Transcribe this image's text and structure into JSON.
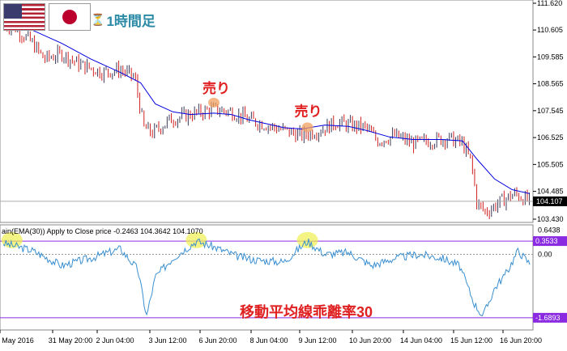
{
  "header": {
    "flags": [
      "us-flag",
      "jp-flag"
    ],
    "timeframe_label": "1時間足"
  },
  "price_axis": {
    "labels": [
      "111.620",
      "110.605",
      "109.585",
      "108.565",
      "107.545",
      "106.525",
      "105.505",
      "104.485",
      "103.430"
    ],
    "current_price": "104.107"
  },
  "indicator": {
    "title": "ain(EMA(30)) Apply to Close price -0.2463 104.3642 104.1070",
    "axis_labels": [
      "0.6438",
      "0.3533",
      "0.00",
      "-1.6893"
    ],
    "watermark": "移動平均線乖離率30"
  },
  "annotations": {
    "sell_1": "売り",
    "sell_2": "売り"
  },
  "time_axis": {
    "labels": [
      "May 2016",
      "31 May 20:00",
      "2 Jun 04:00",
      "3 Jun 12:00",
      "6 Jun 20:00",
      "8 Jun 04:00",
      "9 Jun 12:00",
      "10 Jun 20:00",
      "14 Jun 04:00",
      "15 Jun 12:00",
      "16 Jun 20:00"
    ]
  },
  "colors": {
    "bull": "#3a3a5a",
    "bear": "#d22020",
    "ema": "#0000e0",
    "indicator_line": "#3a8fd0",
    "level_line": "#8a2be2",
    "highlight": "#f0f050",
    "sell_text": "#e02020",
    "watermark": "#e02020"
  },
  "chart_data": {
    "type": "line",
    "title": "",
    "price_range": [
      103.43,
      111.62
    ],
    "price_path": [
      [
        0,
        110.8
      ],
      [
        4,
        110.7
      ],
      [
        10,
        110.1
      ],
      [
        14,
        109.5
      ],
      [
        20,
        109.7
      ],
      [
        26,
        109.3
      ],
      [
        34,
        109.0
      ],
      [
        40,
        109.1
      ],
      [
        45,
        108.8
      ],
      [
        48,
        106.9
      ],
      [
        51,
        106.7
      ],
      [
        57,
        107.2
      ],
      [
        64,
        107.4
      ],
      [
        72,
        107.6
      ],
      [
        78,
        107.5
      ],
      [
        84,
        107.2
      ],
      [
        90,
        107.0
      ],
      [
        96,
        106.8
      ],
      [
        102,
        106.6
      ],
      [
        108,
        106.8
      ],
      [
        114,
        107.1
      ],
      [
        118,
        107.0
      ],
      [
        124,
        106.9
      ],
      [
        128,
        106.4
      ],
      [
        134,
        106.6
      ],
      [
        140,
        106.3
      ],
      [
        146,
        106.4
      ],
      [
        152,
        106.5
      ],
      [
        157,
        106.3
      ],
      [
        160,
        105.6
      ],
      [
        162,
        104.0
      ],
      [
        165,
        103.7
      ],
      [
        170,
        104.1
      ],
      [
        175,
        104.4
      ],
      [
        180,
        104.1
      ]
    ],
    "ema_path": [
      [
        0,
        110.9
      ],
      [
        10,
        110.6
      ],
      [
        20,
        110.1
      ],
      [
        30,
        109.5
      ],
      [
        40,
        109.0
      ],
      [
        47,
        108.6
      ],
      [
        52,
        107.8
      ],
      [
        58,
        107.5
      ],
      [
        64,
        107.4
      ],
      [
        72,
        107.45
      ],
      [
        78,
        107.4
      ],
      [
        84,
        107.2
      ],
      [
        90,
        107.05
      ],
      [
        96,
        106.9
      ],
      [
        102,
        106.85
      ],
      [
        110,
        107.0
      ],
      [
        118,
        106.95
      ],
      [
        124,
        106.8
      ],
      [
        132,
        106.55
      ],
      [
        140,
        106.45
      ],
      [
        150,
        106.45
      ],
      [
        157,
        106.4
      ],
      [
        162,
        105.7
      ],
      [
        168,
        104.95
      ],
      [
        174,
        104.55
      ],
      [
        180,
        104.4
      ]
    ],
    "indicator_path": [
      [
        0,
        0.3
      ],
      [
        10,
        0.1
      ],
      [
        20,
        -0.3
      ],
      [
        30,
        -0.1
      ],
      [
        40,
        0.15
      ],
      [
        46,
        -0.4
      ],
      [
        49,
        -1.65
      ],
      [
        52,
        -0.6
      ],
      [
        58,
        -0.1
      ],
      [
        66,
        0.35
      ],
      [
        72,
        0.2
      ],
      [
        80,
        -0.05
      ],
      [
        86,
        -0.15
      ],
      [
        96,
        -0.2
      ],
      [
        104,
        0.35
      ],
      [
        110,
        0.0
      ],
      [
        118,
        0.05
      ],
      [
        126,
        -0.3
      ],
      [
        134,
        -0.1
      ],
      [
        142,
        0.0
      ],
      [
        150,
        -0.1
      ],
      [
        156,
        -0.3
      ],
      [
        161,
        -1.3
      ],
      [
        164,
        -1.65
      ],
      [
        168,
        -0.9
      ],
      [
        172,
        -0.5
      ],
      [
        176,
        0.1
      ],
      [
        180,
        -0.25
      ]
    ],
    "indicator_range": [
      -1.95,
      0.7
    ],
    "levels": [
      0.3533,
      0.0,
      -1.6893
    ],
    "highlights": [
      3,
      66,
      104
    ],
    "sell_points": [
      72,
      104
    ]
  }
}
